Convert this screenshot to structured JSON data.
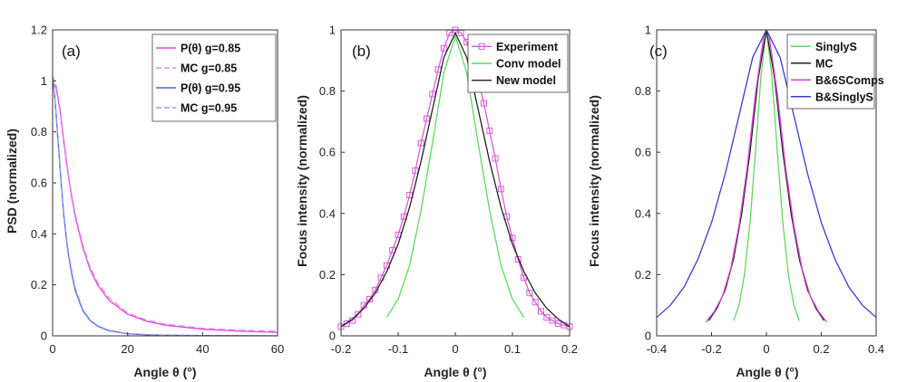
{
  "chart_data": [
    {
      "type": "line",
      "panel_label": "(a)",
      "xlabel": "Angle θ (°)",
      "ylabel": "PSD (normalized)",
      "xlim": [
        0,
        60
      ],
      "ylim": [
        0,
        1.2
      ],
      "xticks": [
        "0",
        "20",
        "40",
        "60"
      ],
      "yticks": [
        "0",
        "0.2",
        "0.4",
        "0.6",
        "0.8",
        "1",
        "1.2"
      ],
      "legend_position": "top-right",
      "series": [
        {
          "name": "P(θ)  g=0.85",
          "color": "#e040e0",
          "dash": "solid",
          "x": [
            0,
            1,
            2,
            3,
            4,
            5,
            6,
            8,
            10,
            12,
            15,
            20,
            25,
            30,
            40,
            50,
            60
          ],
          "y": [
            1.0,
            0.97,
            0.88,
            0.76,
            0.65,
            0.55,
            0.47,
            0.35,
            0.26,
            0.2,
            0.14,
            0.085,
            0.058,
            0.042,
            0.026,
            0.018,
            0.014
          ]
        },
        {
          "name": "MC  g=0.85",
          "color": "#e68ae6",
          "dash": "dashed",
          "x": [
            0,
            1,
            2,
            3,
            4,
            5,
            6,
            8,
            10,
            12,
            15,
            20,
            25,
            30,
            40,
            50,
            60
          ],
          "y": [
            1.02,
            0.98,
            0.89,
            0.77,
            0.66,
            0.56,
            0.48,
            0.36,
            0.27,
            0.21,
            0.15,
            0.09,
            0.062,
            0.046,
            0.03,
            0.022,
            0.018
          ]
        },
        {
          "name": "P(θ)  g=0.95",
          "color": "#5a5ad8",
          "dash": "solid",
          "x": [
            0,
            0.5,
            1,
            2,
            3,
            4,
            5,
            6,
            8,
            10,
            12,
            15,
            20,
            25,
            30,
            40,
            60
          ],
          "y": [
            1.0,
            0.95,
            0.86,
            0.65,
            0.47,
            0.34,
            0.25,
            0.18,
            0.1,
            0.06,
            0.038,
            0.02,
            0.008,
            0.004,
            0.002,
            0.001,
            0.0
          ]
        },
        {
          "name": "MC  g=0.95",
          "color": "#8aa0ee",
          "dash": "dashed",
          "x": [
            0,
            0.5,
            1,
            2,
            3,
            4,
            5,
            6,
            8,
            10,
            12,
            15,
            20,
            25,
            30,
            40,
            60
          ],
          "y": [
            1.01,
            0.95,
            0.86,
            0.66,
            0.48,
            0.35,
            0.26,
            0.19,
            0.105,
            0.063,
            0.04,
            0.022,
            0.009,
            0.005,
            0.003,
            0.001,
            0.0
          ]
        }
      ]
    },
    {
      "type": "line",
      "panel_label": "(b)",
      "xlabel": "Angle θ (°)",
      "ylabel": "Focus intensity (normalized)",
      "xlim": [
        -0.2,
        0.2
      ],
      "ylim": [
        0,
        1
      ],
      "xticks": [
        "-0.2",
        "-0.1",
        "0",
        "0.1",
        "0.2"
      ],
      "yticks": [
        "0",
        "0.2",
        "0.4",
        "0.6",
        "0.8",
        "1"
      ],
      "legend_position": "top-right",
      "series": [
        {
          "name": "Experiment",
          "color": "#d85ad8",
          "dash": "solid",
          "marker": "square",
          "x": [
            -0.2,
            -0.19,
            -0.18,
            -0.17,
            -0.16,
            -0.15,
            -0.14,
            -0.13,
            -0.12,
            -0.11,
            -0.1,
            -0.09,
            -0.08,
            -0.07,
            -0.06,
            -0.05,
            -0.04,
            -0.03,
            -0.02,
            -0.01,
            0.0,
            0.01,
            0.02,
            0.03,
            0.04,
            0.05,
            0.06,
            0.07,
            0.08,
            0.09,
            0.1,
            0.11,
            0.12,
            0.13,
            0.14,
            0.15,
            0.16,
            0.17,
            0.18,
            0.19,
            0.2
          ],
          "y": [
            0.03,
            0.04,
            0.05,
            0.07,
            0.1,
            0.12,
            0.15,
            0.19,
            0.23,
            0.28,
            0.33,
            0.39,
            0.46,
            0.54,
            0.63,
            0.71,
            0.79,
            0.87,
            0.94,
            0.99,
            1.0,
            0.99,
            0.96,
            0.91,
            0.84,
            0.76,
            0.67,
            0.58,
            0.48,
            0.39,
            0.32,
            0.25,
            0.19,
            0.14,
            0.11,
            0.08,
            0.06,
            0.05,
            0.04,
            0.035,
            0.03
          ]
        },
        {
          "name": "Conv model",
          "color": "#5fd85f",
          "dash": "solid",
          "x": [
            -0.12,
            -0.1,
            -0.08,
            -0.06,
            -0.04,
            -0.02,
            0.0,
            0.02,
            0.04,
            0.06,
            0.08,
            0.1,
            0.12
          ],
          "y": [
            0.06,
            0.12,
            0.23,
            0.41,
            0.63,
            0.86,
            0.98,
            0.86,
            0.63,
            0.41,
            0.23,
            0.12,
            0.06
          ]
        },
        {
          "name": "New model",
          "color": "#222222",
          "dash": "solid",
          "x": [
            -0.2,
            -0.18,
            -0.16,
            -0.14,
            -0.12,
            -0.1,
            -0.08,
            -0.06,
            -0.04,
            -0.02,
            0.0,
            0.02,
            0.04,
            0.06,
            0.08,
            0.1,
            0.12,
            0.14,
            0.16,
            0.18,
            0.2
          ],
          "y": [
            0.03,
            0.055,
            0.09,
            0.14,
            0.21,
            0.3,
            0.42,
            0.57,
            0.74,
            0.91,
            0.99,
            0.91,
            0.74,
            0.57,
            0.42,
            0.3,
            0.21,
            0.14,
            0.09,
            0.055,
            0.03
          ]
        }
      ]
    },
    {
      "type": "line",
      "panel_label": "(c)",
      "xlabel": "Angle θ (°)",
      "ylabel": "Focus intensity (normalized)",
      "xlim": [
        -0.4,
        0.4
      ],
      "ylim": [
        0,
        1
      ],
      "xticks": [
        "-0.4",
        "-0.2",
        "0",
        "0.2",
        "0.4"
      ],
      "yticks": [
        "0",
        "0.2",
        "0.4",
        "0.6",
        "0.8",
        "1"
      ],
      "legend_position": "top-right",
      "series": [
        {
          "name": "SinglyS",
          "color": "#5fd85f",
          "dash": "solid",
          "x": [
            -0.12,
            -0.1,
            -0.08,
            -0.06,
            -0.04,
            -0.02,
            0.0,
            0.02,
            0.04,
            0.06,
            0.08,
            0.1,
            0.12
          ],
          "y": [
            0.05,
            0.1,
            0.2,
            0.37,
            0.6,
            0.85,
            1.0,
            0.85,
            0.6,
            0.37,
            0.2,
            0.1,
            0.05
          ]
        },
        {
          "name": "MC",
          "color": "#222222",
          "dash": "solid",
          "x": [
            -0.21,
            -0.18,
            -0.15,
            -0.12,
            -0.09,
            -0.06,
            -0.03,
            0.0,
            0.03,
            0.06,
            0.09,
            0.12,
            0.15,
            0.18,
            0.21
          ],
          "y": [
            0.05,
            0.09,
            0.15,
            0.25,
            0.4,
            0.6,
            0.84,
            1.0,
            0.84,
            0.6,
            0.4,
            0.25,
            0.15,
            0.09,
            0.05
          ]
        },
        {
          "name": "B&6SComps",
          "color": "#e040e0",
          "dash": "solid",
          "x": [
            -0.22,
            -0.19,
            -0.16,
            -0.13,
            -0.1,
            -0.07,
            -0.04,
            -0.01,
            0.0,
            0.01,
            0.04,
            0.07,
            0.1,
            0.13,
            0.16,
            0.19,
            0.22
          ],
          "y": [
            0.045,
            0.08,
            0.13,
            0.22,
            0.36,
            0.55,
            0.79,
            0.98,
            1.0,
            0.98,
            0.79,
            0.55,
            0.36,
            0.22,
            0.13,
            0.08,
            0.045
          ]
        },
        {
          "name": "B&SinglyS",
          "color": "#3a3ad0",
          "dash": "solid",
          "x": [
            -0.4,
            -0.35,
            -0.3,
            -0.25,
            -0.2,
            -0.15,
            -0.1,
            -0.05,
            0.0,
            0.05,
            0.1,
            0.15,
            0.2,
            0.25,
            0.3,
            0.35,
            0.4
          ],
          "y": [
            0.06,
            0.1,
            0.16,
            0.25,
            0.37,
            0.53,
            0.72,
            0.91,
            1.0,
            0.91,
            0.72,
            0.53,
            0.37,
            0.25,
            0.16,
            0.1,
            0.06
          ]
        }
      ]
    }
  ]
}
